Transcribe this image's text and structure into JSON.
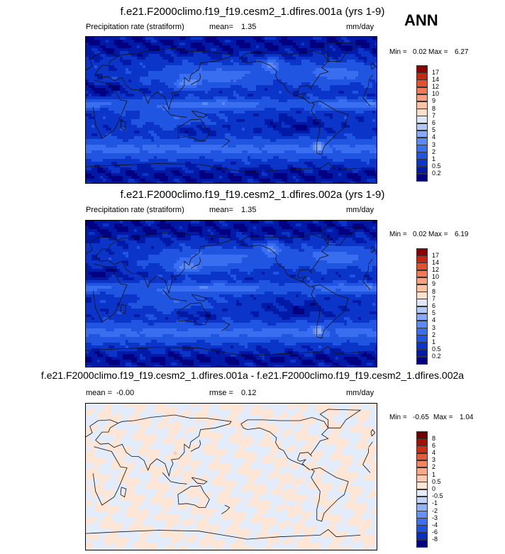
{
  "season": "ANN",
  "panels": [
    {
      "title": "f.e21.F2000climo.f19_f19.cesm2_1.dfires.001a (yrs 1-9)",
      "left_label": "Precipitation rate (stratiform)",
      "center_label": "mean=",
      "center_value": "1.35",
      "units": "mm/day",
      "min_label": "Min =",
      "min_value": "0.02",
      "max_label": "Max =",
      "max_value": "6.27",
      "colorbar_labels": [
        "17",
        "14",
        "12",
        "10",
        "9",
        "8",
        "7",
        "6",
        "5",
        "4",
        "3",
        "2",
        "1",
        "0.5",
        "0.2"
      ]
    },
    {
      "title": "f.e21.F2000climo.f19_f19.cesm2_1.dfires.002a (yrs 1-9)",
      "left_label": "Precipitation rate (stratiform)",
      "center_label": "mean=",
      "center_value": "1.35",
      "units": "mm/day",
      "min_label": "Min =",
      "min_value": "0.02",
      "max_label": "Max =",
      "max_value": "6.19",
      "colorbar_labels": [
        "17",
        "14",
        "12",
        "10",
        "9",
        "8",
        "7",
        "6",
        "5",
        "4",
        "3",
        "2",
        "1",
        "0.5",
        "0.2"
      ]
    },
    {
      "title": "f.e21.F2000climo.f19_f19.cesm2_1.dfires.001a - f.e21.F2000climo.f19_f19.cesm2_1.dfires.002a",
      "left_label": "mean =",
      "left_value": "-0.00",
      "center_label": "rmse =",
      "center_value": "0.12",
      "units": "mm/day",
      "min_label": "Min =",
      "min_value": "-0.65",
      "max_label": "Max =",
      "max_value": "1.04",
      "colorbar_labels": [
        "8",
        "6",
        "4",
        "3",
        "2",
        "1",
        "0.5",
        "0",
        "-0.5",
        "-1",
        "-2",
        "-3",
        "-4",
        "-6",
        "-8"
      ]
    }
  ],
  "chart_data": [
    {
      "type": "heatmap",
      "title": "f.e21.F2000climo.f19_f19.cesm2_1.dfires.001a (yrs 1-9)",
      "variable": "Precipitation rate (stratiform)",
      "units": "mm/day",
      "mean": 1.35,
      "min": 0.02,
      "max": 6.27,
      "levels": [
        0.2,
        0.5,
        1,
        2,
        3,
        4,
        5,
        6,
        7,
        8,
        9,
        10,
        12,
        14,
        17
      ],
      "colors": [
        "#000080",
        "#001aa8",
        "#0a35c8",
        "#1f55e0",
        "#3a6ef0",
        "#5c8af5",
        "#86aaf7",
        "#b3c9f5",
        "#dde6f2",
        "#fde0cc",
        "#fcc2a6",
        "#f8a080",
        "#f07a58",
        "#e2502e",
        "#c42812",
        "#8b0000"
      ]
    },
    {
      "type": "heatmap",
      "title": "f.e21.F2000climo.f19_f19.cesm2_1.dfires.002a (yrs 1-9)",
      "variable": "Precipitation rate (stratiform)",
      "units": "mm/day",
      "mean": 1.35,
      "min": 0.02,
      "max": 6.19,
      "levels": [
        0.2,
        0.5,
        1,
        2,
        3,
        4,
        5,
        6,
        7,
        8,
        9,
        10,
        12,
        14,
        17
      ],
      "colors": [
        "#000080",
        "#001aa8",
        "#0a35c8",
        "#1f55e0",
        "#3a6ef0",
        "#5c8af5",
        "#86aaf7",
        "#b3c9f5",
        "#dde6f2",
        "#fde0cc",
        "#fcc2a6",
        "#f8a080",
        "#f07a58",
        "#e2502e",
        "#c42812",
        "#8b0000"
      ]
    },
    {
      "type": "heatmap",
      "title": "f.e21.F2000climo.f19_f19.cesm2_1.dfires.001a - f.e21.F2000climo.f19_f19.cesm2_1.dfires.002a",
      "units": "mm/day",
      "mean": -0.0,
      "rmse": 0.12,
      "min": -0.65,
      "max": 1.04,
      "levels": [
        -8,
        -6,
        -4,
        -3,
        -2,
        -1,
        -0.5,
        0,
        0.5,
        1,
        2,
        3,
        4,
        6,
        8
      ],
      "colors": [
        "#000080",
        "#0a2fc0",
        "#2050e0",
        "#3f6ef0",
        "#6690f5",
        "#93b3f8",
        "#c0d4f8",
        "#e2ecfa",
        "#fde6d6",
        "#fccab0",
        "#f9a98a",
        "#f38461",
        "#e55a3a",
        "#cc2e17",
        "#a01008",
        "#6e0000"
      ]
    }
  ]
}
